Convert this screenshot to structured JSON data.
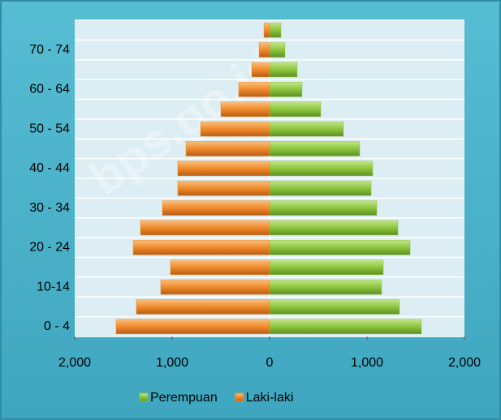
{
  "chart_data": {
    "type": "pyramid",
    "watermark": "bps.go.id",
    "categories": [
      "0 - 4",
      null,
      "10-14",
      null,
      "20 - 24",
      null,
      "30 - 34",
      null,
      "40 - 44",
      null,
      "50 - 54",
      null,
      "60 - 64",
      null,
      "70 - 74",
      null
    ],
    "series": [
      {
        "name": "Perempuan",
        "color": "#8cc63e",
        "values": [
          1558,
          1333,
          1150,
          1167,
          1442,
          1317,
          1100,
          1042,
          1058,
          925,
          758,
          525,
          333,
          283,
          158,
          117
        ]
      },
      {
        "name": "Laki-laki",
        "color": "#f08a2c",
        "values": [
          -1575,
          -1367,
          -1117,
          -1017,
          -1400,
          -1325,
          -1100,
          -942,
          -942,
          -858,
          -708,
          -500,
          -317,
          -183,
          -108,
          -58
        ]
      }
    ],
    "xlim": [
      -2000,
      2000
    ],
    "xticks": [
      {
        "value": -2000,
        "label": "2,000"
      },
      {
        "value": -1000,
        "label": "1,000"
      },
      0,
      {
        "value": 1000,
        "label": "1,000"
      },
      {
        "value": 2000,
        "label": "2,000"
      }
    ],
    "legend": "bottom"
  }
}
